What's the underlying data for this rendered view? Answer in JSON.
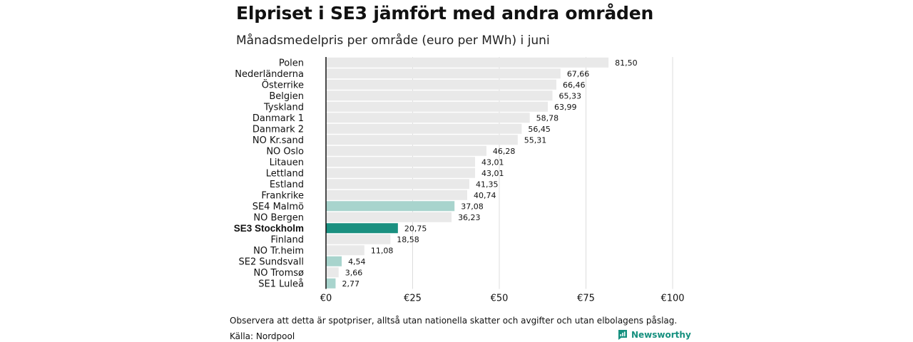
{
  "header": {
    "title": "Elpriset i SE3 jämfört med andra områden",
    "subtitle": "Månadsmedelpris per område (euro per MWh) i juni"
  },
  "footer": {
    "note": "Observera att detta är spotpriser, alltså utan nationella skatter och avgifter och utan elbolagens påslag.",
    "source": "Källa: Nordpool",
    "brand": "Newsworthy",
    "brand_icon": "newsworthy-logo-icon"
  },
  "colors": {
    "default_bar": "#e9e9e9",
    "se_bar": "#a8d4cd",
    "highlight_bar": "#1a9080",
    "axis": "#111111",
    "grid": "#dcdcdc",
    "brand": "#16907f"
  },
  "chart_data": {
    "type": "bar",
    "orientation": "horizontal",
    "title": "Elpriset i SE3 jämfört med andra områden",
    "subtitle": "Månadsmedelpris per område (euro per MWh) i juni",
    "xlim": [
      0,
      100
    ],
    "x_ticks": [
      0,
      25,
      50,
      75,
      100
    ],
    "x_tick_labels": [
      "€0",
      "€25",
      "€50",
      "€75",
      "€100"
    ],
    "grid": "vertical",
    "categories": [
      "Polen",
      "Nederländerna",
      "Österrike",
      "Belgien",
      "Tyskland",
      "Danmark  1",
      "Danmark  2",
      "NO Kr.sand",
      "NO Oslo",
      "Litauen",
      "Lettland",
      "Estland",
      "Frankrike",
      "SE4  Malmö",
      "NO Bergen",
      "SE3 Stockholm",
      "Finland",
      "NO Tr.heim",
      "SE2  Sundsvall",
      "NO Tromsø",
      "SE1  Luleå"
    ],
    "values": [
      81.5,
      67.66,
      66.46,
      65.33,
      63.99,
      58.78,
      56.45,
      55.31,
      46.28,
      43.01,
      43.01,
      41.35,
      40.74,
      37.08,
      36.23,
      20.75,
      18.58,
      11.08,
      4.54,
      3.66,
      2.77
    ],
    "value_labels": [
      "81,50",
      "67,66",
      "66,46",
      "65,33",
      "63,99",
      "58,78",
      "56,45",
      "55,31",
      "46,28",
      "43,01",
      "43,01",
      "41,35",
      "40,74",
      "37,08",
      "36,23",
      "20,75",
      "18,58",
      "11,08",
      "4,54",
      "3,66",
      "2,77"
    ],
    "bar_groups": [
      "default",
      "default",
      "default",
      "default",
      "default",
      "default",
      "default",
      "default",
      "default",
      "default",
      "default",
      "default",
      "default",
      "se",
      "default",
      "highlight",
      "default",
      "default",
      "se",
      "default",
      "se"
    ]
  }
}
